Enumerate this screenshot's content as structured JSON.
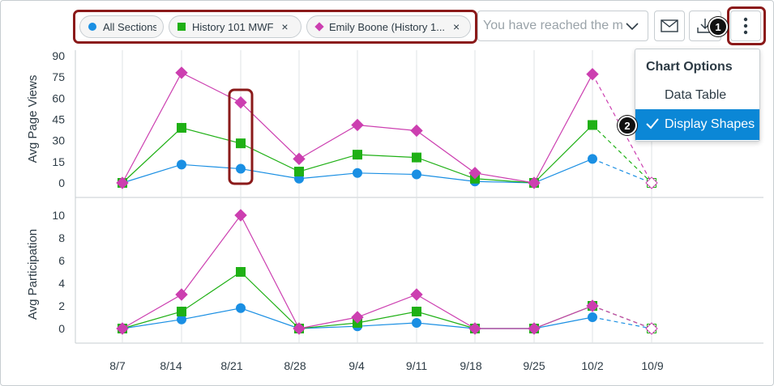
{
  "filters": {
    "pills": [
      {
        "label": "All Sections",
        "marker": "circle",
        "color": "#1a8fe3",
        "removable": false
      },
      {
        "label": "History 101 MWF",
        "marker": "square",
        "color": "#1fb015",
        "removable": true
      },
      {
        "label": "Emily Boone (History 1...",
        "marker": "diamond",
        "color": "#cc3fb0",
        "removable": true
      }
    ],
    "remove_glyph": "×",
    "search_placeholder": "You have reached the ma"
  },
  "toolbar": {
    "message_icon": "envelope-icon",
    "download_icon": "download-icon",
    "options_icon": "kebab-icon"
  },
  "callouts": {
    "one": "1",
    "two": "2"
  },
  "menu": {
    "heading": "Chart Options",
    "items": [
      {
        "label": "Data Table",
        "selected": false
      },
      {
        "label": "Display Shapes",
        "selected": true
      }
    ],
    "accent": "#0b87d6"
  },
  "chart_data": [
    {
      "type": "line",
      "ylabel": "Avg Page Views",
      "yticks": [
        0,
        15,
        30,
        45,
        60,
        75,
        90
      ],
      "ylim": [
        0,
        90
      ],
      "categories": [
        "8/7",
        "8/14",
        "8/21",
        "8/28",
        "9/4",
        "9/11",
        "9/18",
        "9/25",
        "10/2",
        "10/9"
      ],
      "series": [
        {
          "name": "All Sections",
          "marker": "circle",
          "color": "#1a8fe3",
          "values": [
            0,
            13,
            10,
            3,
            7,
            6,
            1,
            0,
            17,
            0
          ]
        },
        {
          "name": "History 101 MWF",
          "marker": "square",
          "color": "#1fb015",
          "values": [
            0,
            39,
            28,
            8,
            20,
            18,
            3,
            0,
            41,
            0
          ]
        },
        {
          "name": "Emily Boone (History 1...",
          "marker": "diamond",
          "color": "#cc3fb0",
          "values": [
            0,
            78,
            57,
            17,
            41,
            37,
            7,
            0,
            77,
            0
          ]
        }
      ],
      "dashed_last_segment": true,
      "highlight_category": "8/21",
      "grid": true
    },
    {
      "type": "line",
      "ylabel": "Avg Participation",
      "yticks": [
        0,
        2,
        4,
        6,
        8,
        10
      ],
      "ylim": [
        -0.6,
        10.8
      ],
      "categories": [
        "8/7",
        "8/14",
        "8/21",
        "8/28",
        "9/4",
        "9/11",
        "9/18",
        "9/25",
        "10/2",
        "10/9"
      ],
      "series": [
        {
          "name": "All Sections",
          "marker": "circle",
          "color": "#1a8fe3",
          "values": [
            0,
            0.8,
            1.8,
            0,
            0.2,
            0.5,
            0,
            0,
            1,
            0
          ]
        },
        {
          "name": "History 101 MWF",
          "marker": "square",
          "color": "#1fb015",
          "values": [
            0,
            1.5,
            5,
            0,
            0.5,
            1.5,
            0,
            0,
            2,
            0
          ]
        },
        {
          "name": "Emily Boone (History 1...",
          "marker": "diamond",
          "color": "#cc3fb0",
          "values": [
            0,
            3,
            10,
            0,
            1,
            3,
            0,
            0,
            2,
            0
          ]
        }
      ],
      "dashed_last_segment": true,
      "grid": true
    }
  ]
}
